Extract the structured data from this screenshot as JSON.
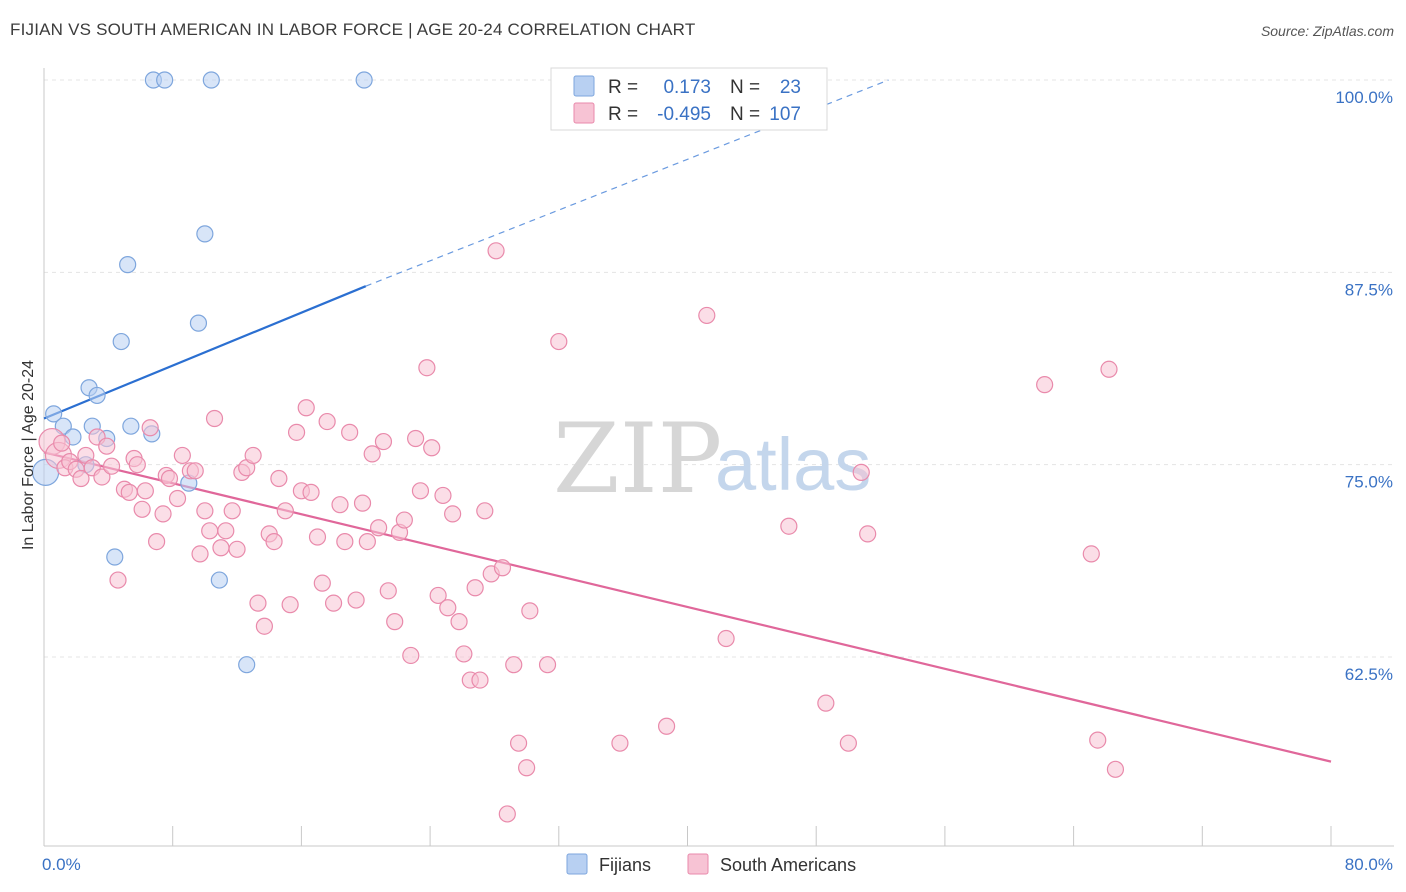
{
  "title": "FIJIAN VS SOUTH AMERICAN IN LABOR FORCE | AGE 20-24 CORRELATION CHART",
  "source": "Source: ZipAtlas.com",
  "watermark": {
    "part1": "ZIP",
    "part2": "atlas"
  },
  "legend_stats": {
    "r_label": "R =",
    "n_label": "N =",
    "rows": [
      {
        "r": "0.173",
        "n": "23",
        "color": "#b8d0f2",
        "stroke": "#7ea6dd"
      },
      {
        "r": "-0.495",
        "n": "107",
        "color": "#f7c3d4",
        "stroke": "#e98aab"
      }
    ]
  },
  "chart_data": {
    "type": "scatter",
    "title": "FIJIAN VS SOUTH AMERICAN IN LABOR FORCE | AGE 20-24 CORRELATION CHART",
    "xlabel": "",
    "ylabel": "In Labor Force | Age 20-24",
    "xlim": [
      0,
      80
    ],
    "ylim": [
      50.5,
      101
    ],
    "x_tick_labels": [
      {
        "value": 0,
        "label": "0.0%"
      },
      {
        "value": 80,
        "label": "80.0%"
      }
    ],
    "y_tick_labels": [
      {
        "value": 100,
        "label": "100.0%"
      },
      {
        "value": 87.5,
        "label": "87.5%"
      },
      {
        "value": 75,
        "label": "75.0%"
      },
      {
        "value": 62.5,
        "label": "62.5%"
      }
    ],
    "grid": true,
    "legend_position": "bottom",
    "series": [
      {
        "name": "Fijians",
        "color": "#b8d0f2",
        "stroke": "#7ea6dd",
        "line_color": "#2b6fd1",
        "trend": {
          "x0": 0,
          "y0": 78.0,
          "x1": 20,
          "y1": 86.6,
          "dash_x1": 52.5,
          "dash_y1": 100.0
        },
        "x": [
          0.1,
          0.6,
          1.2,
          1.8,
          2.6,
          2.8,
          3.0,
          3.3,
          3.9,
          4.4,
          4.8,
          5.2,
          5.4,
          6.7,
          6.8,
          7.5,
          9.0,
          9.6,
          10.0,
          10.4,
          10.9,
          12.6,
          19.9
        ],
        "y": [
          74.5,
          78.3,
          77.5,
          76.8,
          75.0,
          80.0,
          77.5,
          79.5,
          76.7,
          69.0,
          83.0,
          88.0,
          77.5,
          77.0,
          100.0,
          100.0,
          73.8,
          84.2,
          90.0,
          100.0,
          67.5,
          62.0,
          100.0
        ]
      },
      {
        "name": "South Americans",
        "color": "#f7c3d4",
        "stroke": "#e98aab",
        "line_color": "#e0679a",
        "trend": {
          "x0": 0,
          "y0": 75.8,
          "x1": 80,
          "y1": 55.7
        },
        "x": [
          0.5,
          0.9,
          1.1,
          1.3,
          1.6,
          2.0,
          2.3,
          2.6,
          3.0,
          3.3,
          3.6,
          3.9,
          4.2,
          4.6,
          5.0,
          5.3,
          5.6,
          5.8,
          6.1,
          6.3,
          6.6,
          7.0,
          7.4,
          7.6,
          7.8,
          8.3,
          8.6,
          9.1,
          9.4,
          9.7,
          10.0,
          10.3,
          10.6,
          11.0,
          11.3,
          11.7,
          12.0,
          12.3,
          12.6,
          13.0,
          13.3,
          13.7,
          14.0,
          14.3,
          14.6,
          15.0,
          15.3,
          15.7,
          16.0,
          16.3,
          16.6,
          17.0,
          17.3,
          17.6,
          18.0,
          18.4,
          18.7,
          19.0,
          19.4,
          19.8,
          20.1,
          20.4,
          20.8,
          21.1,
          21.4,
          21.8,
          22.1,
          22.4,
          22.8,
          23.1,
          23.4,
          23.8,
          24.1,
          24.5,
          24.8,
          25.1,
          25.4,
          25.8,
          26.1,
          26.5,
          26.8,
          27.1,
          27.4,
          27.8,
          28.1,
          28.5,
          28.8,
          29.2,
          29.5,
          30.0,
          30.2,
          31.3,
          32.0,
          35.8,
          38.7,
          41.2,
          42.4,
          46.3,
          48.6,
          50.0,
          50.8,
          51.2,
          62.2,
          65.1,
          65.5,
          66.2,
          66.6
        ],
        "y": [
          76.5,
          75.6,
          76.4,
          74.8,
          75.2,
          74.7,
          74.1,
          75.6,
          74.8,
          76.8,
          74.2,
          76.2,
          74.9,
          67.5,
          73.4,
          73.2,
          75.4,
          75.0,
          72.1,
          73.3,
          77.4,
          70.0,
          71.8,
          74.3,
          74.1,
          72.8,
          75.6,
          74.6,
          74.6,
          69.2,
          72.0,
          70.7,
          78.0,
          69.6,
          70.7,
          72.0,
          69.5,
          74.5,
          74.8,
          75.6,
          66.0,
          64.5,
          70.5,
          70.0,
          74.1,
          72.0,
          65.9,
          77.1,
          73.3,
          78.7,
          73.2,
          70.3,
          67.3,
          77.8,
          66.0,
          72.4,
          70.0,
          77.1,
          66.2,
          72.5,
          70.0,
          75.7,
          70.9,
          76.5,
          66.8,
          64.8,
          70.6,
          71.4,
          62.6,
          76.7,
          73.3,
          81.3,
          76.1,
          66.5,
          73.0,
          65.7,
          71.8,
          64.8,
          62.7,
          61.0,
          67.0,
          61.0,
          72.0,
          67.9,
          88.9,
          68.3,
          52.3,
          62.0,
          56.9,
          55.3,
          65.5,
          62.0,
          83.0,
          56.9,
          58.0,
          84.7,
          63.7,
          71.0,
          59.5,
          56.9,
          74.5,
          70.5,
          80.2,
          69.2,
          57.1,
          81.2,
          55.2
        ]
      }
    ]
  }
}
